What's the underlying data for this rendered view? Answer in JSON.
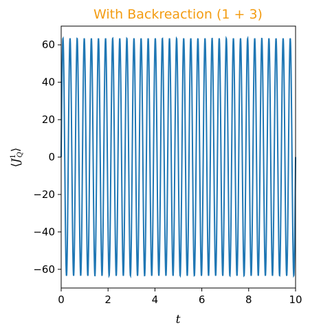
{
  "colors": {
    "title": "#f39c12",
    "series": "#1f77b4"
  },
  "chart_data": {
    "type": "line",
    "title": "With Backreaction (1 + 3)",
    "xlabel": "t",
    "ylabel": "⟨J¹_Q⟩",
    "xlim": [
      0,
      10
    ],
    "ylim": [
      -70,
      70
    ],
    "x_ticks": [
      "0",
      "2",
      "4",
      "6",
      "8",
      "10"
    ],
    "y_ticks": [
      "60",
      "40",
      "20",
      "0",
      "−20",
      "−40",
      "−60"
    ],
    "grid": false,
    "legend": "none",
    "series": [
      {
        "function": "sinusoid",
        "amplitude": 63.5,
        "cycles_in_range": 33,
        "phase_start": "rising from 0 at t=0",
        "values_sampled": [
          {
            "t": 0.0,
            "y": 0
          },
          {
            "t": 0.076,
            "y": 63.5
          },
          {
            "t": 0.152,
            "y": 0
          },
          {
            "t": 0.227,
            "y": -63.5
          },
          {
            "t": 0.303,
            "y": 0
          }
        ]
      }
    ]
  }
}
